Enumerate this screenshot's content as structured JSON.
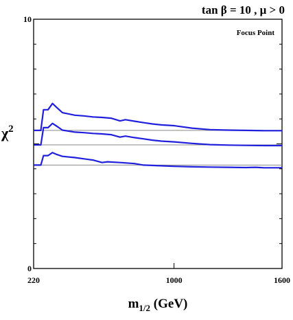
{
  "chart_data": {
    "type": "line",
    "title": "tan β = 10 ,  μ > 0",
    "annotation": "Focus Point",
    "xlabel": {
      "main": "m",
      "sub": "1/2",
      "rest": " (GeV)"
    },
    "ylabel": {
      "main": "χ",
      "sup": "2"
    },
    "xlim": [
      220,
      1600
    ],
    "ylim": [
      0,
      10
    ],
    "x_ticks": [
      {
        "value": 220,
        "label": "220"
      },
      {
        "value": 1000,
        "label": "1000"
      },
      {
        "value": 1600,
        "label": "1600"
      }
    ],
    "y_ticks": [
      {
        "value": 0,
        "label": "0"
      },
      {
        "value": 10,
        "label": "10"
      }
    ],
    "reference_lines": [
      5.54,
      4.96,
      4.15
    ],
    "series": [
      {
        "values": [
          [
            220,
            5.54
          ],
          [
            260,
            5.54
          ],
          [
            275,
            6.37
          ],
          [
            300,
            6.37
          ],
          [
            325,
            6.62
          ],
          [
            350,
            6.45
          ],
          [
            380,
            6.25
          ],
          [
            450,
            6.15
          ],
          [
            500,
            6.12
          ],
          [
            550,
            6.08
          ],
          [
            600,
            6.06
          ],
          [
            650,
            6.03
          ],
          [
            700,
            5.92
          ],
          [
            730,
            5.97
          ],
          [
            780,
            5.91
          ],
          [
            830,
            5.85
          ],
          [
            880,
            5.8
          ],
          [
            930,
            5.76
          ],
          [
            1000,
            5.73
          ],
          [
            1100,
            5.63
          ],
          [
            1200,
            5.57
          ],
          [
            1300,
            5.55
          ],
          [
            1400,
            5.54
          ],
          [
            1500,
            5.53
          ],
          [
            1600,
            5.53
          ]
        ]
      },
      {
        "values": [
          [
            220,
            4.96
          ],
          [
            260,
            4.96
          ],
          [
            275,
            5.65
          ],
          [
            300,
            5.65
          ],
          [
            325,
            5.82
          ],
          [
            350,
            5.7
          ],
          [
            380,
            5.55
          ],
          [
            450,
            5.47
          ],
          [
            500,
            5.45
          ],
          [
            550,
            5.42
          ],
          [
            600,
            5.4
          ],
          [
            650,
            5.37
          ],
          [
            700,
            5.27
          ],
          [
            730,
            5.31
          ],
          [
            780,
            5.25
          ],
          [
            830,
            5.2
          ],
          [
            880,
            5.15
          ],
          [
            930,
            5.11
          ],
          [
            1000,
            5.08
          ],
          [
            1100,
            5.02
          ],
          [
            1200,
            4.97
          ],
          [
            1300,
            4.95
          ],
          [
            1400,
            4.94
          ],
          [
            1500,
            4.93
          ],
          [
            1600,
            4.93
          ]
        ]
      },
      {
        "values": [
          [
            220,
            4.15
          ],
          [
            260,
            4.15
          ],
          [
            275,
            4.53
          ],
          [
            300,
            4.53
          ],
          [
            325,
            4.65
          ],
          [
            350,
            4.57
          ],
          [
            380,
            4.5
          ],
          [
            450,
            4.45
          ],
          [
            500,
            4.4
          ],
          [
            550,
            4.35
          ],
          [
            600,
            4.25
          ],
          [
            630,
            4.28
          ],
          [
            700,
            4.25
          ],
          [
            780,
            4.21
          ],
          [
            830,
            4.15
          ],
          [
            900,
            4.13
          ],
          [
            1000,
            4.1
          ],
          [
            1100,
            4.08
          ],
          [
            1200,
            4.07
          ],
          [
            1300,
            4.06
          ],
          [
            1400,
            4.05
          ],
          [
            1450,
            4.06
          ],
          [
            1500,
            4.04
          ],
          [
            1600,
            4.04
          ]
        ]
      }
    ],
    "colors": {
      "series": "#1f1fdd",
      "reference": "#888888",
      "frame": "#000000"
    },
    "grid": false,
    "legend": "none"
  }
}
